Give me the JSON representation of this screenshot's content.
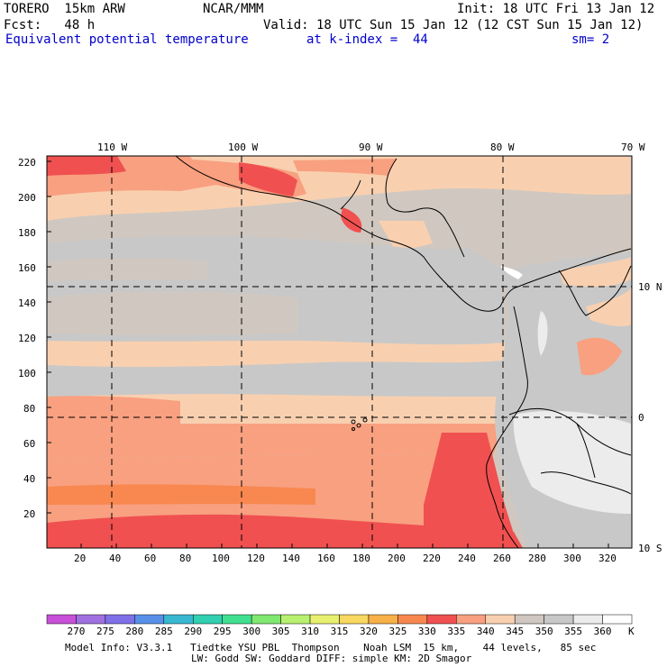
{
  "header": {
    "model": "TORERO  15km ARW",
    "center": "NCAR/MMM",
    "init": "Init: 18 UTC Fri 13 Jan 12",
    "fcst": "Fcst:   48 h",
    "valid": "Valid: 18 UTC Sun 15 Jan 12 (12 CST Sun 15 Jan 12)",
    "field": "Equivalent potential temperature",
    "level": "at k-index =  44",
    "smooth": "sm= 2"
  },
  "axes": {
    "lon_labels": [
      "110 W",
      "100 W",
      "90 W",
      "80 W",
      "70 W"
    ],
    "lat_labels": [
      "10 N",
      "0",
      "10 S"
    ],
    "y_ticks": [
      "20",
      "40",
      "60",
      "80",
      "100",
      "120",
      "140",
      "160",
      "180",
      "200",
      "220"
    ],
    "x_ticks": [
      "20",
      "40",
      "60",
      "80",
      "100",
      "120",
      "140",
      "160",
      "180",
      "200",
      "220",
      "240",
      "260",
      "280",
      "300",
      "320"
    ]
  },
  "colorbar": {
    "levels": [
      "270",
      "275",
      "280",
      "285",
      "290",
      "295",
      "300",
      "305",
      "310",
      "315",
      "320",
      "325",
      "330",
      "335",
      "340",
      "345",
      "350",
      "355",
      "360"
    ],
    "unit": "K",
    "colors": [
      "#c850d8",
      "#a070e0",
      "#8070e8",
      "#5890e8",
      "#38b8d0",
      "#30d0b0",
      "#40e090",
      "#80e870",
      "#b8f070",
      "#e8f070",
      "#f8d860",
      "#f8b048",
      "#f88850",
      "#f05050",
      "#f8a080",
      "#f8d0b0",
      "#d0c8c0",
      "#c8c8c8",
      "#ececec",
      "#ffffff"
    ]
  },
  "footer": {
    "line1": "Model Info: V3.3.1   Tiedtke YSU PBL  Thompson    Noah LSM  15 km,    44 levels,   85 sec",
    "line2": "LW: Godd SW: Goddard DIFF: simple KM: 2D Smagor"
  }
}
